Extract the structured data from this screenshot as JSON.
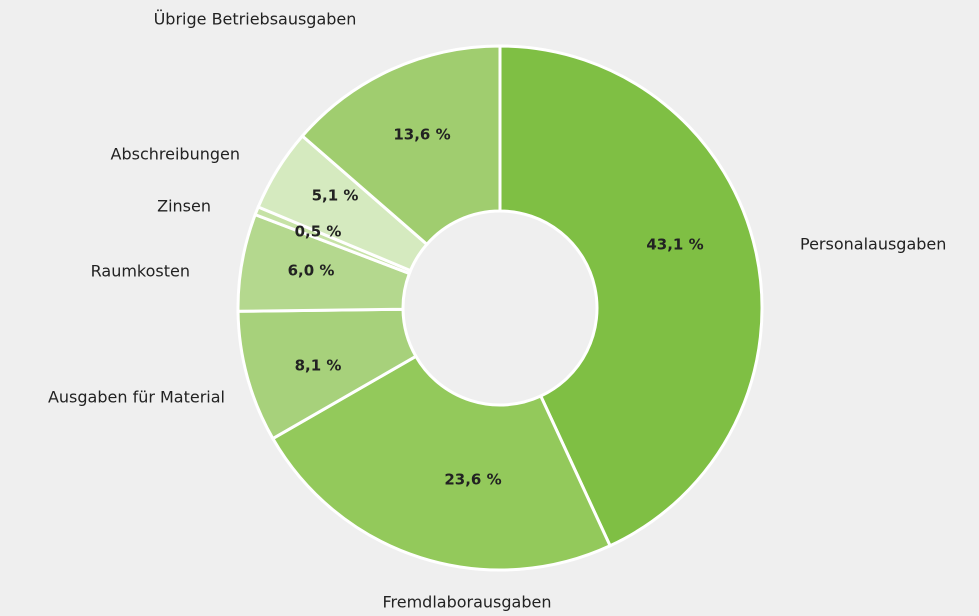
{
  "chart_data": {
    "type": "donut",
    "categories": [
      "Personalausgaben",
      "Fremdlaborausgaben",
      "Ausgaben für Material",
      "Raumkosten",
      "Zinsen",
      "Abschreibungen",
      "Übrige Betriebsausgaben"
    ],
    "values": [
      43.1,
      23.6,
      8.1,
      6.0,
      0.5,
      5.1,
      13.6
    ],
    "value_labels": [
      "43,1 %",
      "23,6 %",
      "8,1 %",
      "6,0 %",
      "0,5 %",
      "5,1 %",
      "13,6 %"
    ],
    "colors": [
      "#7fbf44",
      "#93c95b",
      "#a7d17b",
      "#b4d88e",
      "#c6e2a6",
      "#d5eabf",
      "#a0cd6f"
    ]
  }
}
